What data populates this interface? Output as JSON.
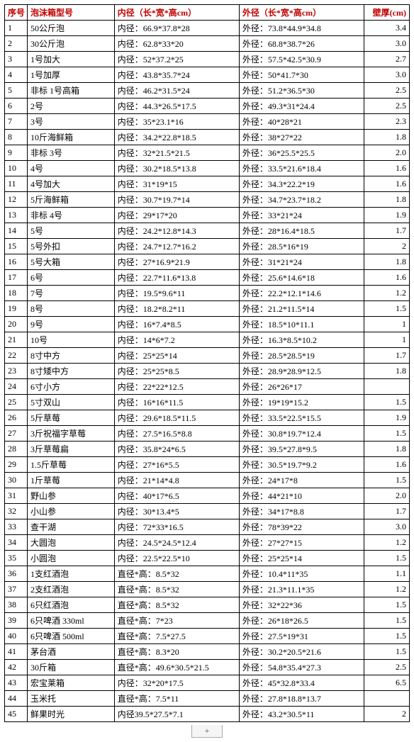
{
  "headers": {
    "seq": "序号",
    "model": "泡沫箱型号",
    "inner": "内径（长*宽*高cm）",
    "outer": "外径（长*宽*高cm）",
    "thick": "壁厚(cm)"
  },
  "inner_prefix_default": "内径：",
  "outer_prefix": "外径：",
  "diameter_prefix": "直径*高：",
  "rows": [
    {
      "seq": "1",
      "model": "50公斤泡",
      "inner": "66.9*37.8*28",
      "outer": "73.8*44.9*34.8",
      "thick": "3.4"
    },
    {
      "seq": "2",
      "model": "30公斤泡",
      "inner": "62.8*33*20",
      "outer": "68.8*38.7*26",
      "thick": "3.0"
    },
    {
      "seq": "3",
      "model": "1号加大",
      "inner": "52*37.2*25",
      "outer": "57.5*42.5*30.9",
      "thick": "2.7"
    },
    {
      "seq": "4",
      "model": "1号加厚",
      "inner": "43.8*35.7*24",
      "outer": "50*41.7*30",
      "thick": "3.0"
    },
    {
      "seq": "5",
      "model": "非标 1号高箱",
      "inner": "46.2*31.5*24",
      "outer": "51.2*36.5*30",
      "thick": "2.5"
    },
    {
      "seq": "6",
      "model": "2号",
      "inner": "44.3*26.5*17.5",
      "outer": "49.3*31*24.4",
      "thick": "2.5"
    },
    {
      "seq": "7",
      "model": "3号",
      "inner": "35*23.1*16",
      "outer": "40*28*21",
      "thick": "2.3"
    },
    {
      "seq": "8",
      "model": "10斤海鲜箱",
      "inner": "34.2*22.8*18.5",
      "outer": "38*27*22",
      "thick": "1.8"
    },
    {
      "seq": "9",
      "model": "非标 3号",
      "inner": "32*21.5*21.5",
      "outer": "36*25.5*25.5",
      "thick": "2.0"
    },
    {
      "seq": "10",
      "model": "4号",
      "inner": "30.2*18.5*13.8",
      "outer": "33.5*21.6*18.4",
      "thick": "1.6"
    },
    {
      "seq": "11",
      "model": "4号加大",
      "inner": "31*19*15",
      "outer": "34.3*22.2*19",
      "thick": "1.6"
    },
    {
      "seq": "12",
      "model": "5斤海鲜箱",
      "inner": "30.7*19.7*14",
      "outer": "34.7*23.7*18.2",
      "thick": "1.8"
    },
    {
      "seq": "13",
      "model": "非标 4号",
      "inner": "29*17*20",
      "outer": "33*21*24",
      "thick": "1.9"
    },
    {
      "seq": "14",
      "model": "5号",
      "inner": "24.2*12.8*14.3",
      "outer": "28*16.4*18.5",
      "thick": "1.7"
    },
    {
      "seq": "15",
      "model": "5号外扣",
      "inner": "24.7*12.7*16.2",
      "outer": "28.5*16*19",
      "thick": "2"
    },
    {
      "seq": "16",
      "model": "5号大箱",
      "inner": "27*16.9*21.9",
      "outer": "31*21*24",
      "thick": "1.8"
    },
    {
      "seq": "17",
      "model": "6号",
      "inner": "22.7*11.6*13.8",
      "outer": "25.6*14.6*18",
      "thick": "1.6"
    },
    {
      "seq": "18",
      "model": "7号",
      "inner": "19.5*9.6*11",
      "outer": "22.2*12.1*14.6",
      "thick": "1.2"
    },
    {
      "seq": "19",
      "model": "8号",
      "inner": "18.2*8.2*11",
      "outer": "21.2*11.5*14",
      "thick": "1.5"
    },
    {
      "seq": "20",
      "model": "9号",
      "inner": "16*7.4*8.5",
      "outer": "18.5*10*11.1",
      "thick": "1"
    },
    {
      "seq": "21",
      "model": "10号",
      "inner": "14*6*7.2",
      "outer": "16.3*8.5*10.2",
      "thick": "1"
    },
    {
      "seq": "22",
      "model": "8寸中方",
      "inner": "25*25*14",
      "outer": "28.5*28.5*19",
      "thick": "1.7"
    },
    {
      "seq": "23",
      "model": "8寸矮中方",
      "inner": "25*25*8.5",
      "outer": "28.9*28.9*12.5",
      "thick": "1.8"
    },
    {
      "seq": "24",
      "model": "6寸小方",
      "inner": "22*22*12.5",
      "outer": "26*26*17",
      "thick": ""
    },
    {
      "seq": "25",
      "model": "5寸双山",
      "inner": "16*16*11.5",
      "outer": "19*19*15.2",
      "thick": "1.5"
    },
    {
      "seq": "26",
      "model": "5斤草莓",
      "inner": "29.6*18.5*11.5",
      "outer": "33.5*22.5*15.5",
      "thick": "1.9"
    },
    {
      "seq": "27",
      "model": "3斤祝福字草莓",
      "inner": "27.5*16.5*8.8",
      "outer": "30.8*19.7*12.4",
      "thick": "1.5"
    },
    {
      "seq": "28",
      "model": "3斤草莓扁",
      "inner": "35.8*24*6.5",
      "outer": "39.5*27.8*9.5",
      "thick": "1.8"
    },
    {
      "seq": "29",
      "model": "1.5斤草莓",
      "inner": "27*16*5.5",
      "outer": "30.5*19.7*9.2",
      "thick": "1.6"
    },
    {
      "seq": "30",
      "model": "1斤草莓",
      "inner": "21*14*4.8",
      "outer": "24*17*8",
      "thick": "1.5"
    },
    {
      "seq": "31",
      "model": "野山参",
      "inner": "40*17*6.5",
      "outer": "44*21*10",
      "thick": "2.0"
    },
    {
      "seq": "32",
      "model": "小山参",
      "inner": "30*13.4*5",
      "outer": "34*17*8.8",
      "thick": "1.7"
    },
    {
      "seq": "33",
      "model": "查干湖",
      "inner": "72*33*16.5",
      "outer": "78*39*22",
      "thick": "3.0"
    },
    {
      "seq": "34",
      "model": "大圆泡",
      "inner": "24.5*24.5*12.4",
      "outer": "27*27*15",
      "thick": "1.2"
    },
    {
      "seq": "35",
      "model": "小圆泡",
      "inner": "22.5*22.5*10",
      "outer": "25*25*14",
      "thick": "1.5"
    },
    {
      "seq": "36",
      "model": "1支红酒泡",
      "inner": "8.5*32",
      "outer": "10.4*11*35",
      "thick": "1.1",
      "inner_is_diameter": true
    },
    {
      "seq": "37",
      "model": "2支红酒泡",
      "inner": "8.5*32",
      "outer": "21.3*11.1*35",
      "thick": "1.2",
      "inner_is_diameter": true
    },
    {
      "seq": "38",
      "model": "6只红酒泡",
      "inner": "8.5*32",
      "outer": "32*22*36",
      "thick": "1.5",
      "inner_is_diameter": true
    },
    {
      "seq": "39",
      "model": "6只啤酒 330ml",
      "inner": "7*23",
      "outer": "26*18*26.5",
      "thick": "1.5",
      "inner_is_diameter": true
    },
    {
      "seq": "40",
      "model": "6只啤酒 500ml",
      "inner": "7.5*27.5",
      "outer": "27.5*19*31",
      "thick": "1.5",
      "inner_is_diameter": true
    },
    {
      "seq": "41",
      "model": "茅台酒",
      "inner": "8.3*20",
      "outer": "30.2*20.5*21.6",
      "thick": "1.5",
      "inner_is_diameter": true
    },
    {
      "seq": "42",
      "model": "30斤箱",
      "inner": "49.6*30.5*21.5",
      "outer": "54.8*35.4*27.3",
      "thick": "2.5",
      "inner_is_diameter": true
    },
    {
      "seq": "43",
      "model": "宏宝莱箱",
      "inner": "32*20*17.5",
      "outer": "45*32.8*33.4",
      "thick": "6.5"
    },
    {
      "seq": "44",
      "model": "玉米托",
      "inner": "7.5*11",
      "outer": "27.8*18.8*13.7",
      "thick": "",
      "inner_is_diameter": true
    },
    {
      "seq": "45",
      "model": "鲜果时光",
      "inner": "39.5*27.5*7.1",
      "inner_prefix": "内径",
      "outer": "43.2*30.5*11",
      "thick": "2"
    }
  ],
  "tab_label": "+"
}
